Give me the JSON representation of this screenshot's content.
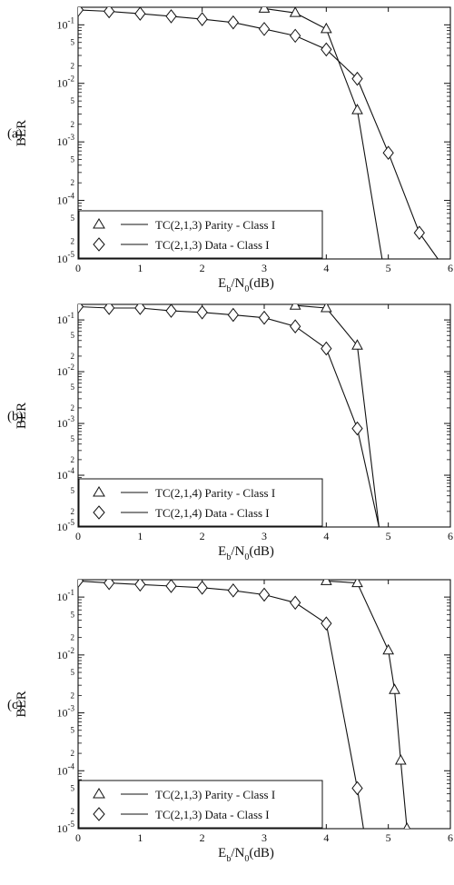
{
  "chart_data": [
    {
      "type": "line",
      "panel_label": "(a)",
      "xlabel_main": "E",
      "xlabel_sub1": "b",
      "xlabel_mid": "/N",
      "xlabel_sub2": "0",
      "xlabel_tail": "(dB)",
      "ylabel": "BER",
      "xlim": [
        0,
        6
      ],
      "ylim_log10": [
        -5,
        -0.7
      ],
      "x_ticks": [
        "0",
        "1",
        "2",
        "3",
        "4",
        "5",
        "6"
      ],
      "y_decade_labels": [
        "10-1",
        "10-2",
        "10-3",
        "10-4",
        "10-5"
      ],
      "legend": {
        "position": "bottom-left"
      },
      "series": [
        {
          "name": "TC(2,1,3) Parity - Class I",
          "marker": "triangle",
          "x": [
            3.0,
            3.5,
            4.0,
            4.5,
            4.9
          ],
          "y": [
            0.19,
            0.16,
            0.085,
            0.0035,
            1e-05
          ]
        },
        {
          "name": "TC(2,1,3) Data - Class I",
          "marker": "diamond",
          "x": [
            0,
            0.5,
            1.0,
            1.5,
            2.0,
            2.5,
            3.0,
            3.5,
            4.0,
            4.5,
            5.0,
            5.5,
            5.8
          ],
          "y": [
            0.18,
            0.17,
            0.155,
            0.14,
            0.125,
            0.11,
            0.085,
            0.065,
            0.038,
            0.012,
            0.00065,
            2.8e-05,
            1e-05
          ]
        }
      ]
    },
    {
      "type": "line",
      "panel_label": "(b)",
      "xlabel_main": "E",
      "xlabel_sub1": "b",
      "xlabel_mid": "/N",
      "xlabel_sub2": "0",
      "xlabel_tail": "(dB)",
      "ylabel": "BER",
      "xlim": [
        0,
        6
      ],
      "ylim_log10": [
        -5,
        -0.7
      ],
      "x_ticks": [
        "0",
        "1",
        "2",
        "3",
        "4",
        "5",
        "6"
      ],
      "y_decade_labels": [
        "10-1",
        "10-2",
        "10-3",
        "10-4",
        "10-5"
      ],
      "legend": {
        "position": "bottom-left"
      },
      "series": [
        {
          "name": "TC(2,1,4) Parity - Class I",
          "marker": "triangle",
          "x": [
            3.5,
            4.0,
            4.5,
            4.85
          ],
          "y": [
            0.19,
            0.17,
            0.032,
            1e-05
          ]
        },
        {
          "name": "TC(2,1,4) Data - Class I",
          "marker": "diamond",
          "x": [
            0,
            0.5,
            1.0,
            1.5,
            2.0,
            2.5,
            3.0,
            3.5,
            4.0,
            4.5,
            4.85
          ],
          "y": [
            0.18,
            0.17,
            0.17,
            0.15,
            0.14,
            0.125,
            0.11,
            0.075,
            0.028,
            0.0008,
            1e-05
          ]
        }
      ]
    },
    {
      "type": "line",
      "panel_label": "(c)",
      "xlabel_main": "E",
      "xlabel_sub1": "b",
      "xlabel_mid": "/N",
      "xlabel_sub2": "0",
      "xlabel_tail": "(dB)",
      "ylabel": "BER",
      "xlim": [
        0,
        6
      ],
      "ylim_log10": [
        -5,
        -0.7
      ],
      "x_ticks": [
        "0",
        "1",
        "2",
        "3",
        "4",
        "5",
        "6"
      ],
      "y_decade_labels": [
        "10-1",
        "10-2",
        "10-3",
        "10-4",
        "10-5"
      ],
      "legend": {
        "position": "bottom-left"
      },
      "series": [
        {
          "name": "TC(2,1,3) Parity - Class I",
          "marker": "triangle",
          "x": [
            4.0,
            4.5,
            5.0,
            5.1,
            5.2,
            5.3
          ],
          "y": [
            0.19,
            0.175,
            0.012,
            0.0025,
            0.00015,
            1e-05
          ]
        },
        {
          "name": "TC(2,1,3) Data - Class I",
          "marker": "diamond",
          "x": [
            0,
            0.5,
            1.0,
            1.5,
            2.0,
            2.5,
            3.0,
            3.5,
            4.0,
            4.5,
            4.6
          ],
          "y": [
            0.19,
            0.175,
            0.165,
            0.155,
            0.145,
            0.13,
            0.11,
            0.08,
            0.035,
            5e-05,
            1e-05
          ]
        }
      ]
    }
  ]
}
